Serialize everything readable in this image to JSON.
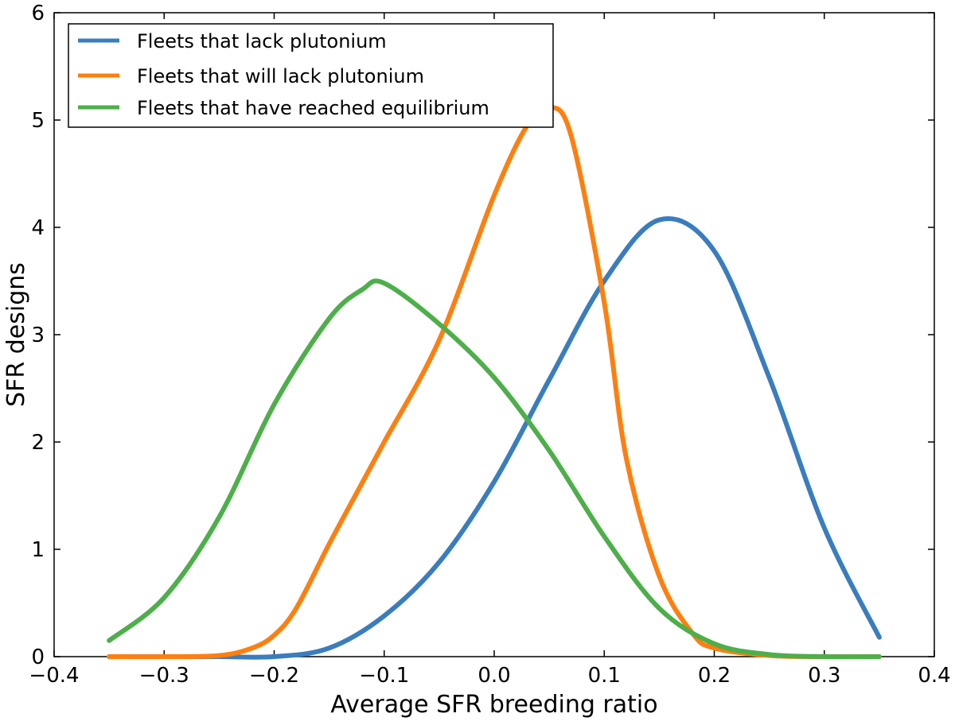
{
  "chart_data": {
    "type": "line",
    "xlabel": "Average SFR breeding ratio",
    "ylabel": "SFR designs",
    "xlim": [
      -0.4,
      0.4
    ],
    "ylim": [
      0,
      6
    ],
    "x_ticks": [
      "−0.4",
      "−0.3",
      "−0.2",
      "−0.1",
      "0.0",
      "0.1",
      "0.2",
      "0.3",
      "0.4"
    ],
    "y_ticks": [
      "0",
      "1",
      "2",
      "3",
      "4",
      "5",
      "6"
    ],
    "grid": false,
    "legend_position": "top-left",
    "series": [
      {
        "name": "Fleets that lack plutonium",
        "color": "#3a7dbf",
        "x": [
          -0.35,
          -0.3,
          -0.25,
          -0.2,
          -0.15,
          -0.1,
          -0.05,
          0.0,
          0.05,
          0.1,
          0.15,
          0.2,
          0.25,
          0.3,
          0.35
        ],
        "y": [
          0.0,
          0.0,
          0.0,
          0.0,
          0.08,
          0.38,
          0.88,
          1.63,
          2.58,
          3.5,
          4.07,
          3.78,
          2.6,
          1.2,
          0.18
        ]
      },
      {
        "name": "Fleets that will lack plutonium",
        "color": "#ff7f0e",
        "x": [
          -0.35,
          -0.3,
          -0.25,
          -0.22,
          -0.2,
          -0.18,
          -0.15,
          -0.12,
          -0.1,
          -0.05,
          0.0,
          0.03,
          0.05,
          0.07,
          0.1,
          0.12,
          0.15,
          0.18,
          0.2,
          0.25,
          0.3,
          0.35
        ],
        "y": [
          0.0,
          0.0,
          0.01,
          0.08,
          0.2,
          0.45,
          1.05,
          1.62,
          2.0,
          2.95,
          4.3,
          4.95,
          5.12,
          4.85,
          3.3,
          1.85,
          0.75,
          0.22,
          0.08,
          0.01,
          0.0,
          0.0
        ]
      },
      {
        "name": "Fleets that have reached equilibrium",
        "color": "#4daf4a",
        "x": [
          -0.35,
          -0.3,
          -0.25,
          -0.2,
          -0.15,
          -0.12,
          -0.1,
          -0.05,
          0.0,
          0.05,
          0.1,
          0.15,
          0.2,
          0.25,
          0.3,
          0.35
        ],
        "y": [
          0.15,
          0.55,
          1.3,
          2.35,
          3.15,
          3.42,
          3.48,
          3.1,
          2.6,
          1.92,
          1.12,
          0.45,
          0.12,
          0.02,
          0.0,
          0.0
        ]
      }
    ]
  }
}
